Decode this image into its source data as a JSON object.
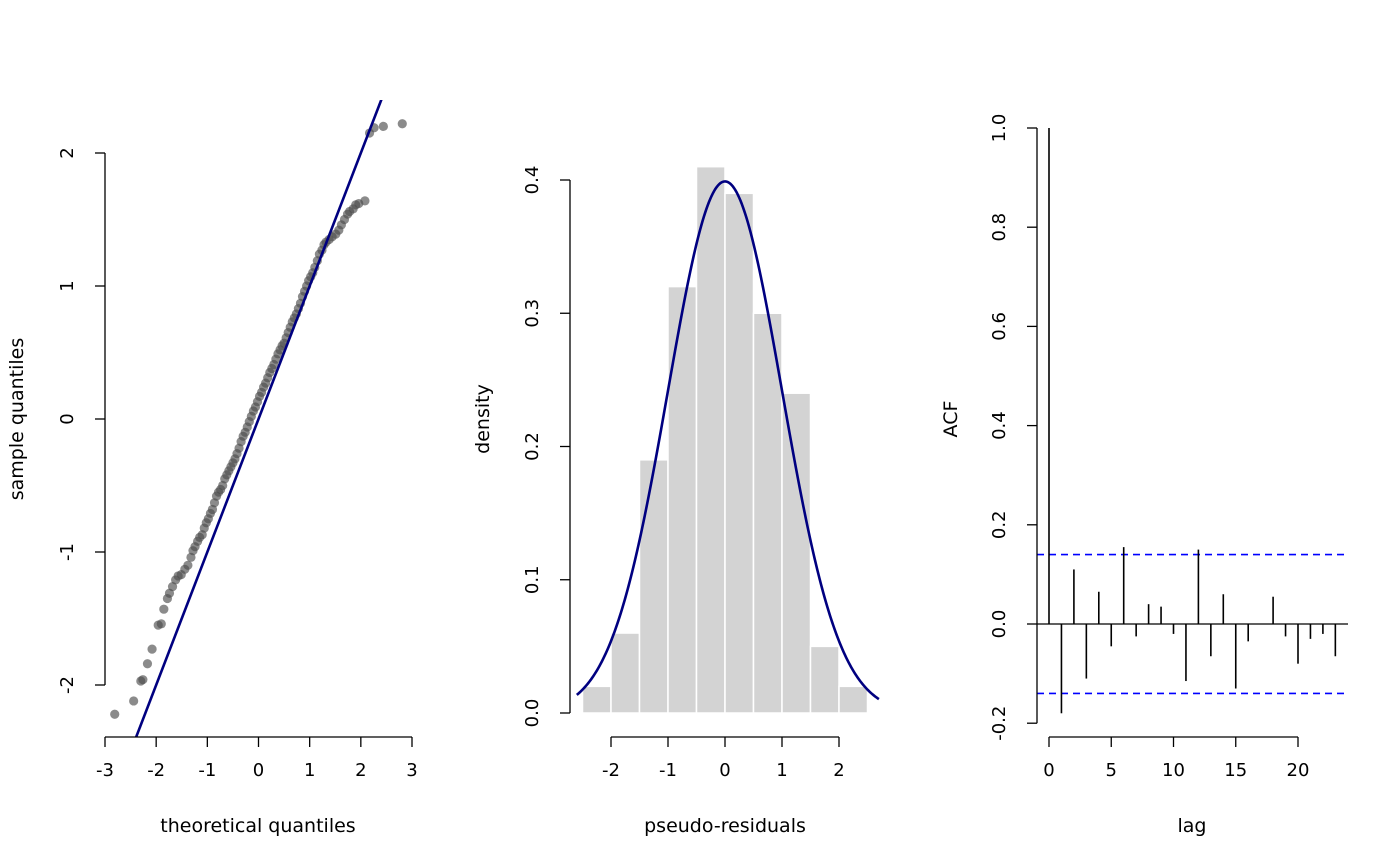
{
  "colors": {
    "points": "#4d4d4d",
    "reference_line": "#000080",
    "bars_fill": "#d3d3d3",
    "bars_border": "#ffffff",
    "density_curve": "#000080",
    "confidence_band": "#0000ff",
    "acf_lines": "#000000"
  },
  "chart_data": [
    {
      "type": "scatter",
      "xlabel": "theoretical quantiles",
      "ylabel": "sample quantiles",
      "xlim": [
        -3,
        3
      ],
      "ylim": [
        -2.4,
        2.4
      ],
      "xticks": [
        -3,
        -2,
        -1,
        0,
        1,
        2,
        3
      ],
      "yticks": [
        -2,
        -1,
        0,
        1,
        2
      ],
      "reference_line": {
        "intercept": 0,
        "slope": 1
      },
      "points": {
        "x": [
          -2.81,
          -2.44,
          -2.3,
          -2.26,
          -2.17,
          -2.08,
          -1.96,
          -1.9,
          -1.85,
          -1.78,
          -1.74,
          -1.68,
          -1.62,
          -1.57,
          -1.51,
          -1.44,
          -1.38,
          -1.32,
          -1.28,
          -1.24,
          -1.19,
          -1.15,
          -1.1,
          -1.06,
          -1.02,
          -0.98,
          -0.94,
          -0.9,
          -0.86,
          -0.82,
          -0.78,
          -0.74,
          -0.7,
          -0.66,
          -0.62,
          -0.58,
          -0.54,
          -0.5,
          -0.46,
          -0.42,
          -0.38,
          -0.34,
          -0.3,
          -0.26,
          -0.22,
          -0.18,
          -0.14,
          -0.1,
          -0.06,
          -0.02,
          0.02,
          0.06,
          0.1,
          0.14,
          0.18,
          0.22,
          0.26,
          0.3,
          0.34,
          0.38,
          0.42,
          0.46,
          0.5,
          0.54,
          0.58,
          0.62,
          0.66,
          0.7,
          0.74,
          0.78,
          0.82,
          0.86,
          0.9,
          0.94,
          0.98,
          1.02,
          1.06,
          1.1,
          1.15,
          1.19,
          1.24,
          1.28,
          1.32,
          1.38,
          1.44,
          1.51,
          1.57,
          1.62,
          1.68,
          1.74,
          1.78,
          1.85,
          1.9,
          1.96,
          2.08,
          2.17,
          2.26,
          2.44,
          2.81
        ],
        "y": [
          -2.22,
          -2.12,
          -1.97,
          -1.96,
          -1.84,
          -1.73,
          -1.55,
          -1.54,
          -1.43,
          -1.35,
          -1.31,
          -1.26,
          -1.21,
          -1.18,
          -1.17,
          -1.13,
          -1.1,
          -1.04,
          -0.99,
          -0.96,
          -0.92,
          -0.89,
          -0.87,
          -0.82,
          -0.78,
          -0.75,
          -0.71,
          -0.68,
          -0.63,
          -0.58,
          -0.55,
          -0.53,
          -0.5,
          -0.45,
          -0.42,
          -0.39,
          -0.36,
          -0.33,
          -0.3,
          -0.26,
          -0.22,
          -0.17,
          -0.13,
          -0.1,
          -0.06,
          -0.02,
          0.02,
          0.06,
          0.09,
          0.13,
          0.17,
          0.2,
          0.24,
          0.27,
          0.31,
          0.35,
          0.38,
          0.41,
          0.45,
          0.49,
          0.52,
          0.55,
          0.57,
          0.61,
          0.65,
          0.69,
          0.73,
          0.76,
          0.79,
          0.83,
          0.87,
          0.92,
          0.96,
          1.0,
          1.04,
          1.07,
          1.1,
          1.14,
          1.19,
          1.24,
          1.27,
          1.31,
          1.33,
          1.35,
          1.37,
          1.39,
          1.42,
          1.46,
          1.5,
          1.54,
          1.56,
          1.58,
          1.61,
          1.62,
          1.64,
          2.15,
          2.19,
          2.2,
          2.22
        ]
      }
    },
    {
      "type": "bar",
      "xlabel": "pseudo-residuals",
      "ylabel": "density",
      "xlim": [
        -2.6,
        2.7
      ],
      "ylim": [
        0,
        0.42
      ],
      "xticks": [
        -2,
        -1,
        0,
        1,
        2
      ],
      "yticks": [
        0.0,
        0.1,
        0.2,
        0.3,
        0.4
      ],
      "bins": [
        {
          "from": -2.5,
          "to": -2.0,
          "density": 0.02
        },
        {
          "from": -2.0,
          "to": -1.5,
          "density": 0.06
        },
        {
          "from": -1.5,
          "to": -1.0,
          "density": 0.19
        },
        {
          "from": -1.0,
          "to": -0.5,
          "density": 0.32
        },
        {
          "from": -0.5,
          "to": 0.0,
          "density": 0.41
        },
        {
          "from": 0.0,
          "to": 0.5,
          "density": 0.39
        },
        {
          "from": 0.5,
          "to": 1.0,
          "density": 0.3
        },
        {
          "from": 1.0,
          "to": 1.5,
          "density": 0.24
        },
        {
          "from": 1.5,
          "to": 2.0,
          "density": 0.05
        },
        {
          "from": 2.0,
          "to": 2.5,
          "density": 0.02
        }
      ],
      "curve": {
        "distribution": "standard normal density",
        "mean": 0,
        "sd": 1
      }
    },
    {
      "type": "bar",
      "xlabel": "lag",
      "ylabel": "ACF",
      "xlim": [
        0,
        23
      ],
      "ylim": [
        -0.2,
        1.0
      ],
      "xticks": [
        0,
        5,
        10,
        15,
        20
      ],
      "yticks": [
        -0.2,
        0.0,
        0.2,
        0.4,
        0.6,
        0.8,
        1.0
      ],
      "confidence_bounds": [
        -0.14,
        0.14
      ],
      "lags": [
        0,
        1,
        2,
        3,
        4,
        5,
        6,
        7,
        8,
        9,
        10,
        11,
        12,
        13,
        14,
        15,
        16,
        17,
        18,
        19,
        20,
        21,
        22,
        23
      ],
      "acf": [
        1.0,
        -0.18,
        0.11,
        -0.11,
        0.065,
        -0.045,
        0.155,
        -0.025,
        0.04,
        0.035,
        -0.02,
        -0.115,
        0.15,
        -0.065,
        0.06,
        -0.13,
        -0.035,
        0.0,
        0.055,
        -0.025,
        -0.08,
        -0.03,
        -0.02,
        -0.065
      ]
    }
  ]
}
